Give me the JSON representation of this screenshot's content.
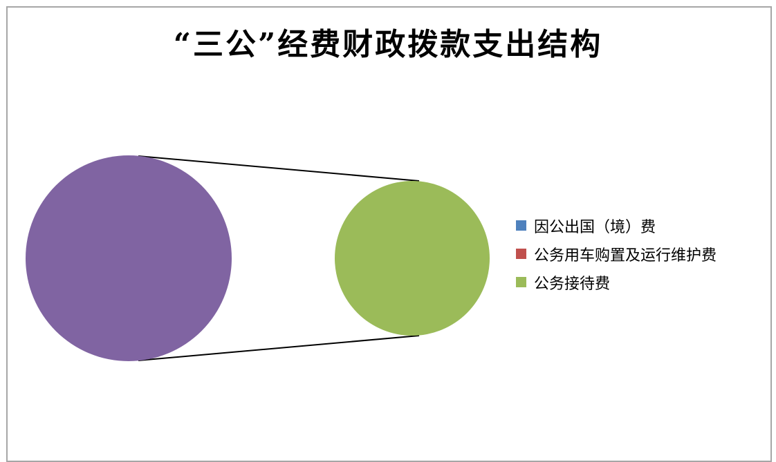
{
  "chart_data": {
    "type": "pie",
    "subtype": "pie-of-pie",
    "title": "“三公”经费财政拨款支出结构",
    "series": [
      {
        "name": "因公出国（境）费",
        "value": 0,
        "color": "#4f81bd"
      },
      {
        "name": "公务用车购置及运行维护费",
        "value": 0,
        "color": "#c0504d"
      },
      {
        "name": "公务接待费",
        "value": 100,
        "color": "#9bbb59"
      }
    ],
    "primary_pie": {
      "label": "",
      "color": "#8064a2",
      "value": 100
    },
    "secondary_pie": {
      "label": "",
      "color": "#9bbb59",
      "value": 100
    },
    "legend_position": "right",
    "data_labels": false
  }
}
